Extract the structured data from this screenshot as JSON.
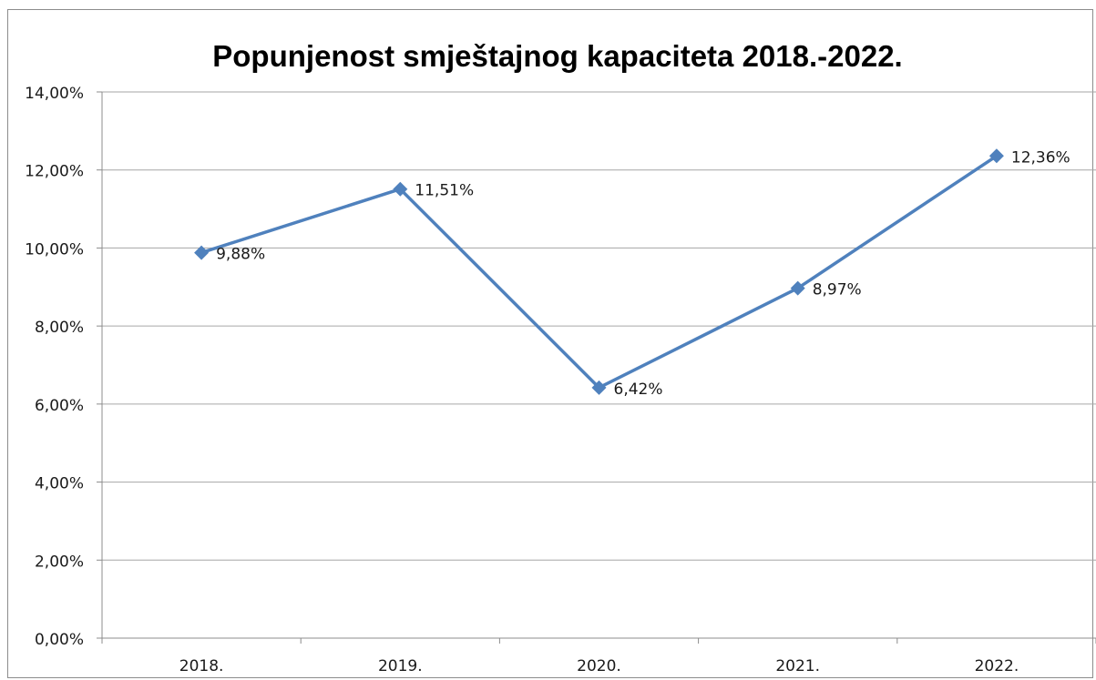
{
  "chart_data": {
    "type": "line",
    "title": "Popunjenost smještajnog kapaciteta 2018.-2022.",
    "categories": [
      "2018.",
      "2019.",
      "2020.",
      "2021.",
      "2022."
    ],
    "values": [
      9.88,
      11.51,
      6.42,
      8.97,
      12.36
    ],
    "data_labels": [
      "9,88%",
      "11,51%",
      "6,42%",
      "8,97%",
      "12,36%"
    ],
    "y_ticks": [
      "0,00%",
      "2,00%",
      "4,00%",
      "6,00%",
      "8,00%",
      "10,00%",
      "12,00%",
      "14,00%"
    ],
    "ylim": [
      0,
      14
    ],
    "y_step": 2,
    "xlabel": "",
    "ylabel": "",
    "grid": true,
    "legend": "none",
    "series_color": "#4f81bd",
    "grid_color": "#a6a6a6"
  }
}
